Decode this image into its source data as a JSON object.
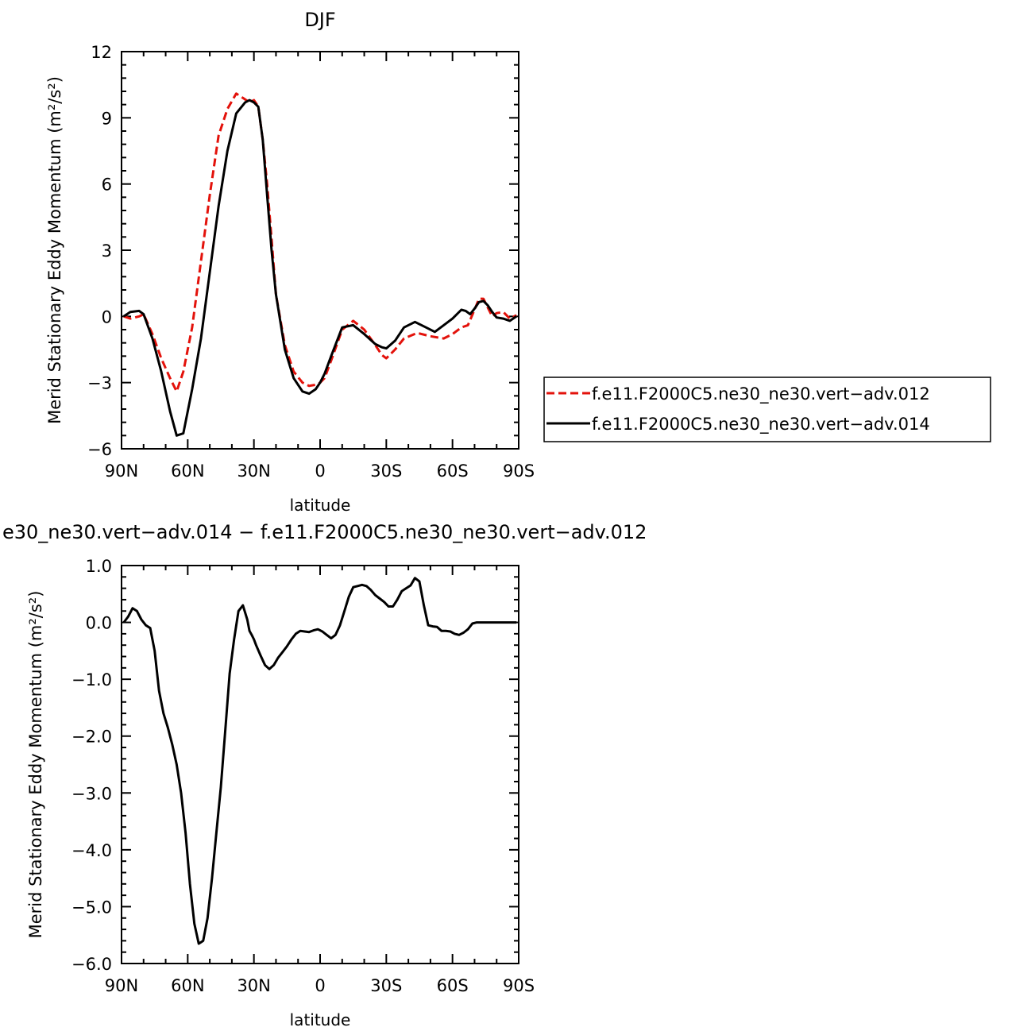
{
  "figure": {
    "season_title": "DJF",
    "diff_title": "e30_ne30.vert−adv.014 − f.e11.F2000C5.ne30_ne30.vert−adv.012"
  },
  "colors": {
    "series_012": "#e3120b",
    "series_014": "#000000",
    "axis": "#000000"
  },
  "chart_data": [
    {
      "type": "line",
      "title": "DJF",
      "xlabel": "latitude",
      "ylabel": "Merid Stationary Eddy Momentum (m²/s²)",
      "xlim": [
        90,
        -90
      ],
      "ylim": [
        -6,
        12
      ],
      "xticks": [
        90,
        60,
        30,
        0,
        -30,
        -60,
        -90
      ],
      "xticklabels": [
        "90N",
        "60N",
        "30N",
        "0",
        "30S",
        "60S",
        "90S"
      ],
      "yticks": [
        -6,
        -3,
        0,
        3,
        6,
        9,
        12
      ],
      "yticklabels": [
        "−6",
        "−3",
        "0",
        "3",
        "6",
        "9",
        "12"
      ],
      "legend": "right",
      "series": [
        {
          "name": "f.e11.F2000C5.ne30_ne30.vert−adv.012",
          "style": "dashed",
          "x": [
            89,
            86,
            82,
            80,
            76,
            72,
            68,
            65,
            62,
            58,
            54,
            50,
            46,
            42,
            38,
            35,
            32,
            30,
            28,
            26,
            24,
            22,
            20,
            16,
            12,
            8,
            5,
            2,
            0,
            -2,
            -5,
            -10,
            -15,
            -20,
            -25,
            -28,
            -30,
            -34,
            -38,
            -44,
            -50,
            -56,
            -60,
            -64,
            -67,
            -70,
            -72,
            -74,
            -76,
            -78,
            -80,
            -83,
            -86,
            -89
          ],
          "y": [
            0.0,
            -0.1,
            0.0,
            0.1,
            -0.8,
            -1.9,
            -2.8,
            -3.4,
            -2.5,
            -0.5,
            2.5,
            5.5,
            8.2,
            9.4,
            10.1,
            9.9,
            9.7,
            9.8,
            9.5,
            8.0,
            6.0,
            3.5,
            1.0,
            -1.3,
            -2.5,
            -3.0,
            -3.15,
            -3.1,
            -3.0,
            -2.8,
            -2.0,
            -0.6,
            -0.2,
            -0.6,
            -1.3,
            -1.75,
            -1.9,
            -1.5,
            -1.0,
            -0.75,
            -0.9,
            -1.0,
            -0.8,
            -0.5,
            -0.4,
            0.3,
            0.8,
            0.8,
            0.4,
            0.0,
            0.15,
            0.2,
            -0.1,
            0.05
          ]
        },
        {
          "name": "f.e11.F2000C5.ne30_ne30.vert−adv.014",
          "style": "solid",
          "x": [
            89,
            86,
            82,
            80,
            76,
            72,
            68,
            65,
            62,
            58,
            54,
            50,
            46,
            42,
            38,
            34,
            32,
            30,
            28,
            26,
            24,
            22,
            20,
            16,
            12,
            8,
            5,
            2,
            0,
            -2,
            -5,
            -10,
            -15,
            -20,
            -25,
            -28,
            -30,
            -34,
            -38,
            -43,
            -48,
            -52,
            -56,
            -60,
            -64,
            -66,
            -68,
            -70,
            -72,
            -74,
            -76,
            -78,
            -80,
            -83,
            -86,
            -89
          ],
          "y": [
            0.0,
            0.2,
            0.25,
            0.1,
            -1.0,
            -2.5,
            -4.3,
            -5.4,
            -5.3,
            -3.3,
            -1.0,
            2.0,
            5.0,
            7.5,
            9.2,
            9.7,
            9.8,
            9.7,
            9.5,
            8.0,
            5.5,
            3.0,
            1.0,
            -1.5,
            -2.8,
            -3.4,
            -3.5,
            -3.3,
            -3.0,
            -2.6,
            -1.8,
            -0.5,
            -0.4,
            -0.8,
            -1.25,
            -1.4,
            -1.45,
            -1.1,
            -0.5,
            -0.25,
            -0.5,
            -0.7,
            -0.4,
            -0.1,
            0.3,
            0.25,
            0.1,
            0.35,
            0.65,
            0.7,
            0.5,
            0.2,
            -0.05,
            -0.1,
            -0.2,
            0.0
          ]
        }
      ]
    },
    {
      "type": "line",
      "title": "e30_ne30.vert−adv.014 − f.e11.F2000C5.ne30_ne30.vert−adv.012",
      "xlabel": "latitude",
      "ylabel": "Merid Stationary Eddy Momentum (m²/s²)",
      "xlim": [
        90,
        -90
      ],
      "ylim": [
        -6,
        1
      ],
      "xticks": [
        90,
        60,
        30,
        0,
        -30,
        -60,
        -90
      ],
      "xticklabels": [
        "90N",
        "60N",
        "30N",
        "0",
        "30S",
        "60S",
        "90S"
      ],
      "yticks": [
        -6,
        -5,
        -4,
        -3,
        -2,
        -1,
        0,
        1
      ],
      "yticklabels": [
        "−6.0",
        "−5.0",
        "−4.0",
        "−3.0",
        "−2.0",
        "−1.0",
        "0.0",
        "1.0"
      ],
      "series": [
        {
          "style": "solid",
          "x": [
            89,
            87,
            85,
            83,
            81,
            79,
            77,
            75,
            73,
            71,
            69,
            67,
            65,
            63,
            61,
            59,
            57,
            55,
            53,
            51,
            49,
            47,
            45,
            43,
            41,
            39,
            37,
            35,
            33,
            32,
            31,
            30,
            29,
            27,
            25,
            23,
            21,
            19,
            17,
            15,
            13,
            11,
            9,
            7,
            5,
            3,
            1,
            -1,
            -3,
            -5,
            -7,
            -9,
            -11,
            -13,
            -15,
            -17,
            -19,
            -21,
            -23,
            -25,
            -27,
            -29,
            -31,
            -33,
            -35,
            -37,
            -39,
            -41,
            -43,
            -45,
            -47,
            -49,
            -51,
            -53,
            -55,
            -57,
            -59,
            -61,
            -63,
            -65,
            -67,
            -69,
            -71,
            -73,
            -75,
            -77,
            -79,
            -81,
            -83,
            -85,
            -87,
            -89
          ],
          "y": [
            0.0,
            0.1,
            0.25,
            0.2,
            0.05,
            -0.05,
            -0.1,
            -0.5,
            -1.2,
            -1.6,
            -1.85,
            -2.15,
            -2.5,
            -3.0,
            -3.7,
            -4.6,
            -5.3,
            -5.65,
            -5.6,
            -5.2,
            -4.5,
            -3.7,
            -2.9,
            -1.9,
            -0.9,
            -0.3,
            0.2,
            0.3,
            0.05,
            -0.15,
            -0.22,
            -0.3,
            -0.4,
            -0.58,
            -0.75,
            -0.82,
            -0.75,
            -0.62,
            -0.52,
            -0.42,
            -0.3,
            -0.2,
            -0.15,
            -0.16,
            -0.17,
            -0.14,
            -0.12,
            -0.16,
            -0.22,
            -0.28,
            -0.22,
            -0.05,
            0.2,
            0.45,
            0.62,
            0.64,
            0.66,
            0.64,
            0.57,
            0.48,
            0.42,
            0.36,
            0.28,
            0.28,
            0.4,
            0.55,
            0.6,
            0.65,
            0.78,
            0.72,
            0.3,
            -0.05,
            -0.07,
            -0.08,
            -0.15,
            -0.15,
            -0.16,
            -0.2,
            -0.22,
            -0.18,
            -0.12,
            -0.02,
            0.0,
            0.0,
            0.0,
            0.0,
            0.0,
            0.0,
            0.0,
            0.0,
            0.0,
            0.0
          ]
        }
      ]
    }
  ]
}
